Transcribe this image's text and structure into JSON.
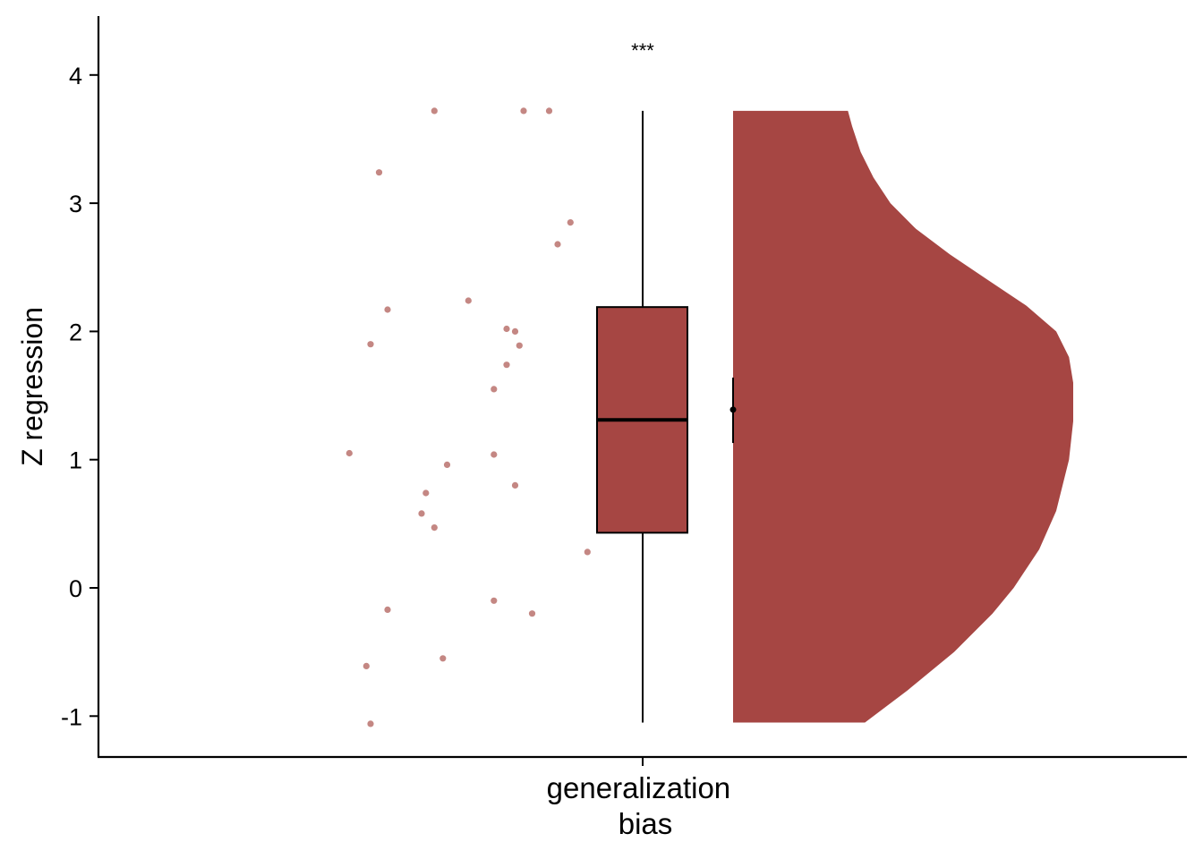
{
  "chart_data": {
    "type": "raincloud",
    "ylabel": "Z regression",
    "categories": [
      "generalization\nbias"
    ],
    "category_lines": [
      "generalization",
      "bias"
    ],
    "ylim": [
      -1.32,
      4.45
    ],
    "yticks": [
      -1,
      0,
      1,
      2,
      3,
      4
    ],
    "ytick_labels": [
      "-1",
      "0",
      "1",
      "2",
      "3",
      "4"
    ],
    "grid": false,
    "legend": "none",
    "annotation": "***",
    "color_fill": "#a64643",
    "color_points": "#c48783",
    "boxplot": {
      "min": -1.05,
      "q1": 0.43,
      "median": 1.31,
      "q3": 2.19,
      "max": 3.72
    },
    "mean": 1.39,
    "mean_ci": [
      1.13,
      1.64
    ],
    "points": [
      {
        "jitter": -0.49,
        "y": 3.72
      },
      {
        "jitter": -0.28,
        "y": 3.72
      },
      {
        "jitter": -0.22,
        "y": 3.72
      },
      {
        "jitter": -0.62,
        "y": 3.24
      },
      {
        "jitter": -0.17,
        "y": 2.85
      },
      {
        "jitter": -0.2,
        "y": 2.68
      },
      {
        "jitter": -0.41,
        "y": 2.24
      },
      {
        "jitter": -0.6,
        "y": 2.17
      },
      {
        "jitter": -0.32,
        "y": 2.02
      },
      {
        "jitter": -0.3,
        "y": 2.0
      },
      {
        "jitter": -0.64,
        "y": 1.9
      },
      {
        "jitter": -0.29,
        "y": 1.89
      },
      {
        "jitter": -0.32,
        "y": 1.74
      },
      {
        "jitter": -0.35,
        "y": 1.55
      },
      {
        "jitter": -0.69,
        "y": 1.05
      },
      {
        "jitter": -0.35,
        "y": 1.04
      },
      {
        "jitter": -0.46,
        "y": 0.96
      },
      {
        "jitter": -0.3,
        "y": 0.8
      },
      {
        "jitter": -0.51,
        "y": 0.74
      },
      {
        "jitter": -0.52,
        "y": 0.58
      },
      {
        "jitter": -0.49,
        "y": 0.47
      },
      {
        "jitter": -0.13,
        "y": 0.28
      },
      {
        "jitter": -0.35,
        "y": -0.1
      },
      {
        "jitter": -0.6,
        "y": -0.17
      },
      {
        "jitter": -0.26,
        "y": -0.2
      },
      {
        "jitter": -0.47,
        "y": -0.55
      },
      {
        "jitter": -0.65,
        "y": -0.61
      },
      {
        "jitter": -0.64,
        "y": -1.06
      }
    ],
    "density": [
      {
        "y": -1.05,
        "d": 0.31
      },
      {
        "y": -0.8,
        "d": 0.41
      },
      {
        "y": -0.5,
        "d": 0.52
      },
      {
        "y": -0.2,
        "d": 0.61
      },
      {
        "y": 0.0,
        "d": 0.66
      },
      {
        "y": 0.3,
        "d": 0.72
      },
      {
        "y": 0.6,
        "d": 0.76
      },
      {
        "y": 1.0,
        "d": 0.79
      },
      {
        "y": 1.3,
        "d": 0.8
      },
      {
        "y": 1.6,
        "d": 0.8
      },
      {
        "y": 1.8,
        "d": 0.79
      },
      {
        "y": 2.0,
        "d": 0.76
      },
      {
        "y": 2.2,
        "d": 0.69
      },
      {
        "y": 2.4,
        "d": 0.6
      },
      {
        "y": 2.6,
        "d": 0.51
      },
      {
        "y": 2.8,
        "d": 0.43
      },
      {
        "y": 3.0,
        "d": 0.37
      },
      {
        "y": 3.2,
        "d": 0.33
      },
      {
        "y": 3.4,
        "d": 0.3
      },
      {
        "y": 3.6,
        "d": 0.28
      },
      {
        "y": 3.72,
        "d": 0.27
      }
    ]
  }
}
